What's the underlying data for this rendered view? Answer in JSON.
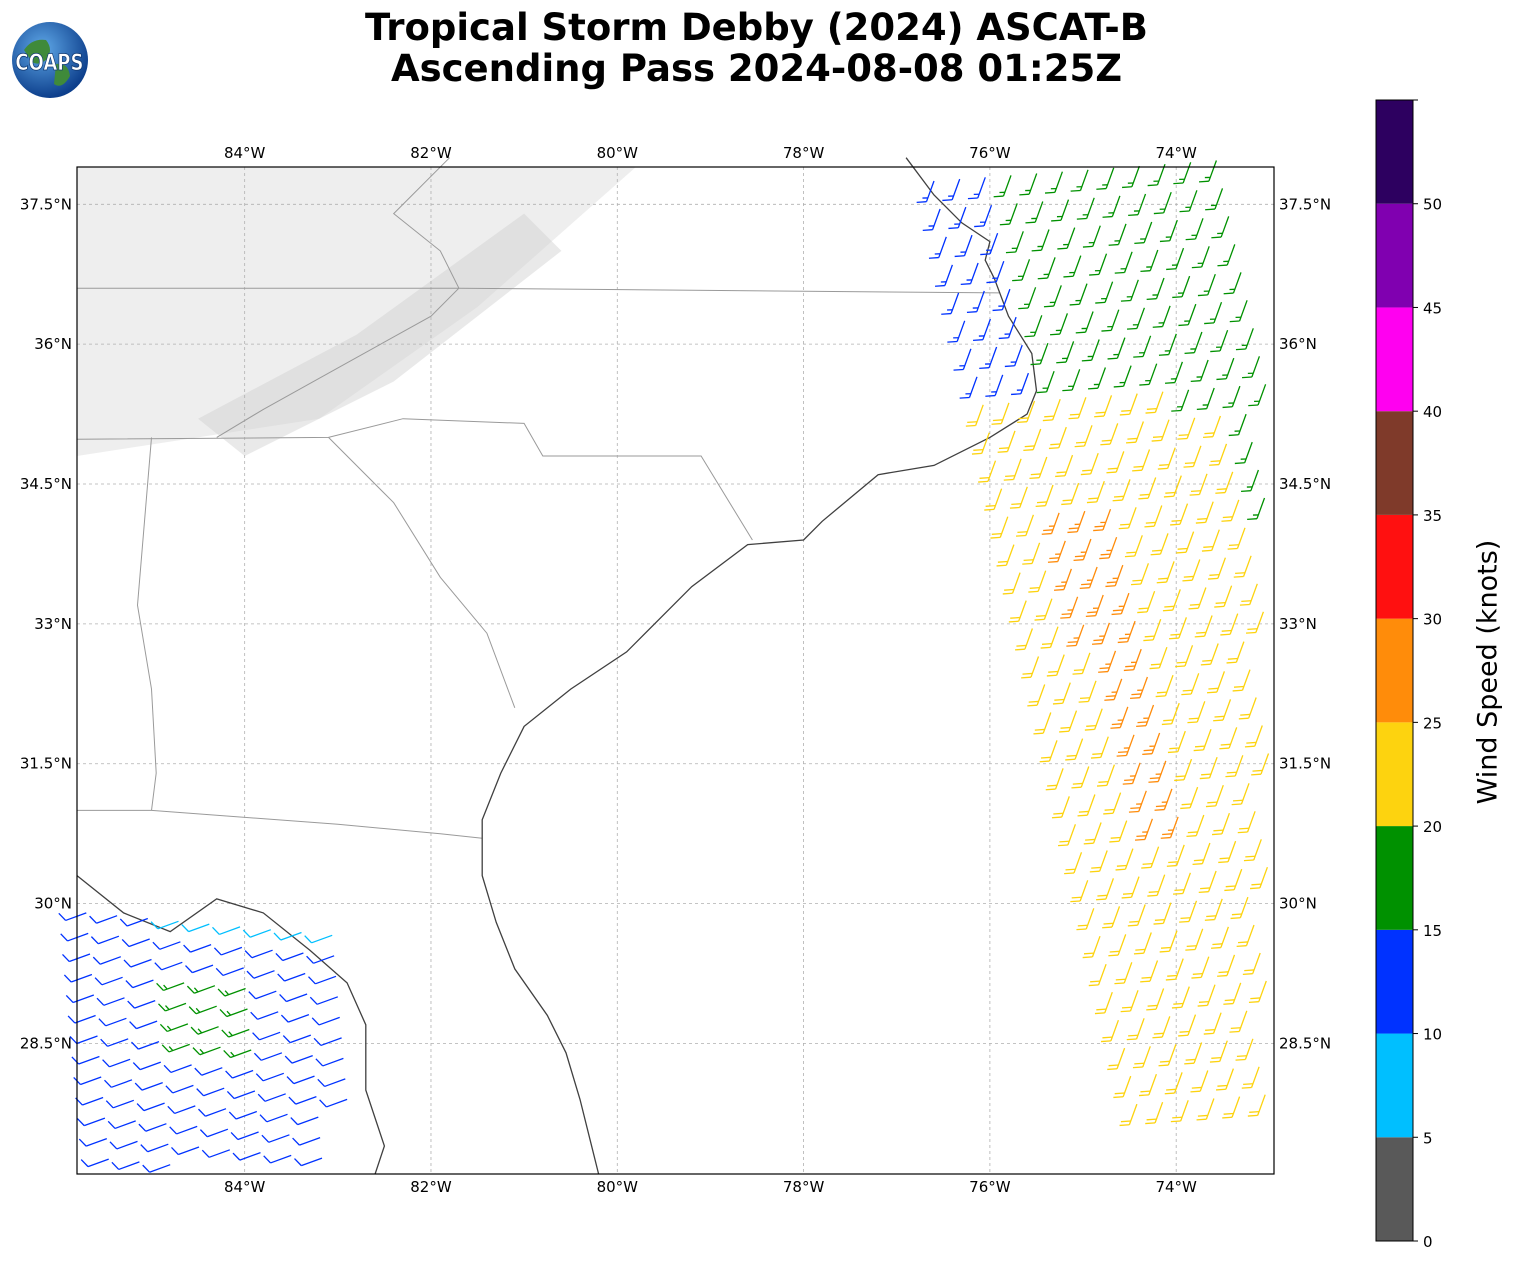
{
  "title": {
    "line1": "Tropical Storm Debby (2024) ASCAT-B",
    "line2": "Ascending Pass 2024-08-08 01:25Z"
  },
  "logo": {
    "text": "COAPS",
    "icon": "globe-icon"
  },
  "map": {
    "lon_range": [
      -85.8,
      -72.95
    ],
    "lat_range": [
      27.1,
      37.9
    ],
    "lon_ticks": [
      "84°W",
      "82°W",
      "80°W",
      "78°W",
      "76°W",
      "74°W"
    ],
    "lon_tick_values": [
      -84,
      -82,
      -80,
      -78,
      -76,
      -74
    ],
    "lat_ticks": [
      "37.5°N",
      "36°N",
      "34.5°N",
      "33°N",
      "31.5°N",
      "30°N",
      "28.5°N"
    ],
    "lat_tick_values": [
      37.5,
      36,
      34.5,
      33,
      31.5,
      30,
      28.5
    ],
    "gridlines": true,
    "colors": {
      "coast": "#404040",
      "border": "#9a9a9a",
      "grid": "#b0b0b0",
      "terrain": "#cfcfcf"
    }
  },
  "colorbar": {
    "label": "Wind Speed (knots)",
    "tick_labels": [
      "0",
      "5",
      "10",
      "15",
      "20",
      "25",
      "30",
      "35",
      "40",
      "45",
      "50"
    ],
    "tick_values": [
      0,
      5,
      10,
      15,
      20,
      25,
      30,
      35,
      40,
      45,
      50
    ],
    "max": 55,
    "bins": [
      {
        "from": 0,
        "to": 5,
        "color": "#595959"
      },
      {
        "from": 5,
        "to": 10,
        "color": "#00bfff"
      },
      {
        "from": 10,
        "to": 15,
        "color": "#0032ff"
      },
      {
        "from": 15,
        "to": 20,
        "color": "#009100"
      },
      {
        "from": 20,
        "to": 25,
        "color": "#fdd30f"
      },
      {
        "from": 25,
        "to": 30,
        "color": "#ff8c0a"
      },
      {
        "from": 30,
        "to": 35,
        "color": "#ff1010"
      },
      {
        "from": 35,
        "to": 40,
        "color": "#7f3a2a"
      },
      {
        "from": 40,
        "to": 45,
        "color": "#ff00f0"
      },
      {
        "from": 45,
        "to": 50,
        "color": "#8000b0"
      },
      {
        "from": 50,
        "to": 55,
        "color": "#2d0060"
      }
    ]
  }
}
